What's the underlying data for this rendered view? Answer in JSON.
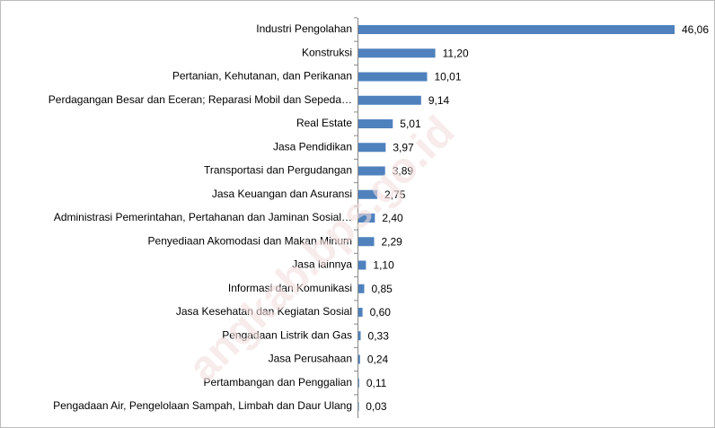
{
  "chart_data": {
    "type": "bar",
    "orientation": "horizontal",
    "categories": [
      "Industri Pengolahan",
      "Konstruksi",
      "Pertanian, Kehutanan, dan Perikanan",
      "Perdagangan Besar dan Eceran; Reparasi Mobil dan Sepeda…",
      "Real Estate",
      "Jasa Pendidikan",
      "Transportasi dan Pergudangan",
      "Jasa Keuangan dan Asuransi",
      "Administrasi Pemerintahan, Pertahanan dan Jaminan Sosial…",
      "Penyediaan Akomodasi dan Makan Minum",
      "Jasa lainnya",
      "Informasi dan Komunikasi",
      "Jasa Kesehatan dan Kegiatan Sosial",
      "Pengadaan Listrik dan Gas",
      "Jasa Perusahaan",
      "Pertambangan dan Penggalian",
      "Pengadaan Air, Pengelolaan Sampah, Limbah dan Daur Ulang"
    ],
    "values": [
      46.06,
      11.2,
      10.01,
      9.14,
      5.01,
      3.97,
      3.89,
      2.75,
      2.4,
      2.29,
      1.1,
      0.85,
      0.6,
      0.33,
      0.24,
      0.11,
      0.03
    ],
    "value_labels": [
      "46,06",
      "11,20",
      "10,01",
      "9,14",
      "5,01",
      "3,97",
      "3,89",
      "2,75",
      "2,40",
      "2,29",
      "1,10",
      "0,85",
      "0,60",
      "0,33",
      "0,24",
      "0,11",
      "0,03"
    ],
    "color": "#4f81bd",
    "watermark": "angkab.bps.go.id"
  }
}
